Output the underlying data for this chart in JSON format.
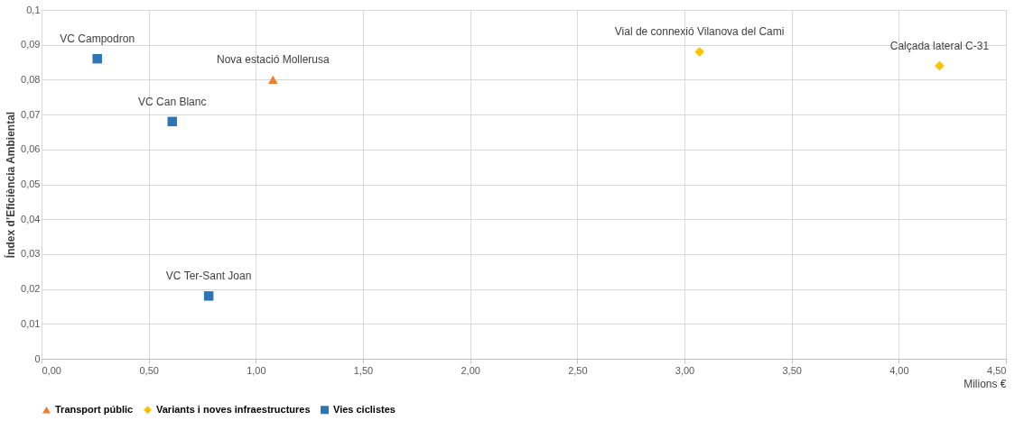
{
  "chart_data": {
    "type": "scatter",
    "xlabel": "Milions €",
    "ylabel": "Índex d’Eficiència Ambiental",
    "series": [
      {
        "name": "Transport públic",
        "color": "#ed7d31",
        "marker": "triangle",
        "x": [
          1.08
        ],
        "values": [
          0.08
        ]
      },
      {
        "name": "Variants i noves infraestructures",
        "color": "#ffc000",
        "marker": "diamond",
        "x": [
          3.07,
          4.19
        ],
        "values": [
          0.088,
          0.084
        ]
      },
      {
        "name": "Vies ciclistes",
        "color": "#2e75b6",
        "marker": "square",
        "x": [
          0.26,
          0.61,
          0.78
        ],
        "values": [
          0.086,
          0.068,
          0.018
        ]
      }
    ],
    "annotations": [
      {
        "text": "Nova estació Mollerusa",
        "x": 1.08,
        "y": 0.08
      },
      {
        "text": "Vial de connexió Vilanova del Cami",
        "x": 3.07,
        "y": 0.088
      },
      {
        "text": "Calçada lateral C-31",
        "x": 4.19,
        "y": 0.084
      },
      {
        "text": "VC Campodron",
        "x": 0.26,
        "y": 0.086
      },
      {
        "text": "VC Can Blanc",
        "x": 0.61,
        "y": 0.068
      },
      {
        "text": "VC Ter-Sant Joan",
        "x": 0.78,
        "y": 0.018
      }
    ],
    "xlim": [
      0,
      4.5
    ],
    "xticks": [
      {
        "value": 0,
        "label": "0,00"
      },
      {
        "value": 0.5,
        "label": "0,50"
      },
      {
        "value": 1,
        "label": "1,00"
      },
      {
        "value": 1.5,
        "label": "1,50"
      },
      {
        "value": 2,
        "label": "2,00"
      },
      {
        "value": 2.5,
        "label": "2,50"
      },
      {
        "value": 3,
        "label": "3,00"
      },
      {
        "value": 3.5,
        "label": "3,50"
      },
      {
        "value": 4,
        "label": "4,00"
      },
      {
        "value": 4.5,
        "label": "4,50"
      }
    ],
    "ylim": [
      0,
      0.1
    ],
    "yticks": [
      0,
      {
        "value": 0.01,
        "label": "0,01"
      },
      {
        "value": 0.02,
        "label": "0,02"
      },
      {
        "value": 0.03,
        "label": "0,03"
      },
      {
        "value": 0.04,
        "label": "0,04"
      },
      {
        "value": 0.05,
        "label": "0,05"
      },
      {
        "value": 0.06,
        "label": "0,06"
      },
      {
        "value": 0.07,
        "label": "0,07"
      },
      {
        "value": 0.08,
        "label": "0,08"
      },
      {
        "value": 0.09,
        "label": "0,09"
      },
      {
        "value": 0.1,
        "label": "0,1"
      }
    ],
    "grid": true,
    "legend": "bottom"
  }
}
